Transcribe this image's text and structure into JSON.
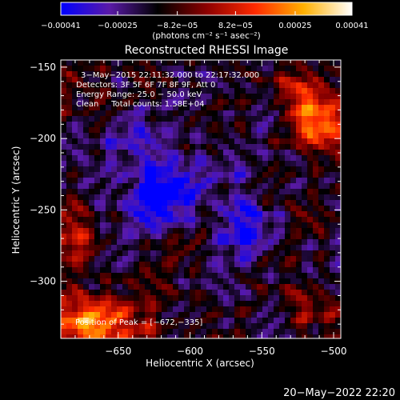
{
  "chart_data": {
    "type": "heatmap",
    "title": "Reconstructed RHESSI Image",
    "xlabel": "Heliocentric X (arcsec)",
    "ylabel": "Heliocentric Y (arcsec)",
    "xlim": [
      -690,
      -495
    ],
    "ylim": [
      -340,
      -145
    ],
    "x_ticks": [
      -650,
      -600,
      -550,
      -500
    ],
    "x_tick_labels": [
      "−650",
      "−600",
      "−550",
      "−500"
    ],
    "y_ticks": [
      -150,
      -200,
      -250,
      -300
    ],
    "y_tick_labels": [
      "−150",
      "−200",
      "−250",
      "−300"
    ],
    "colorbar": {
      "vmin": -0.00041,
      "vmax": 0.00041,
      "tick_values": [
        -0.00041,
        -0.00025,
        -8.2e-05,
        8.2e-05,
        0.00025,
        0.00041
      ],
      "tick_labels": [
        "−0.00041",
        "−0.00025",
        "−8.2e−05",
        "8.2e−05",
        "0.00025",
        "0.00041"
      ],
      "label": "(photons cm⁻² s⁻¹ asec⁻²)",
      "colors": [
        "#0000ff",
        "#5a1aa8",
        "#000000",
        "#8c0000",
        "#ff2a00",
        "#ffb000",
        "#ffffff"
      ]
    },
    "annotations": [
      "3−May−2015 22:11:32.000 to 22:17:32.000",
      "Detectors: 3F 5F 6F 7F 8F 9F, Att 0",
      "Energy Range: 25.0 − 50.0 keV",
      "Clean     Total counts: 1.58E+04"
    ],
    "peak_label": "Position of Peak = [−672,−335]",
    "peak_position": [
      -672,
      -335
    ],
    "bright_regions": [
      {
        "x": -675,
        "y": -330,
        "intensity": 0.0004
      },
      {
        "x": -640,
        "y": -332,
        "intensity": 0.0002
      },
      {
        "x": -512,
        "y": -190,
        "intensity": 0.00032
      },
      {
        "x": -520,
        "y": -165,
        "intensity": 0.00022
      },
      {
        "x": -515,
        "y": -318,
        "intensity": 0.00016
      },
      {
        "x": -682,
        "y": -272,
        "intensity": 0.00018
      },
      {
        "x": -682,
        "y": -160,
        "intensity": 0.00012
      }
    ],
    "dim_regions": [
      {
        "x": -620,
        "y": -238,
        "intensity": -0.00035
      },
      {
        "x": -560,
        "y": -265,
        "intensity": -0.0002
      },
      {
        "x": -640,
        "y": -200,
        "intensity": -0.00015
      },
      {
        "x": -570,
        "y": -215,
        "intensity": -0.00012
      }
    ]
  },
  "footer": {
    "timestamp": "20−May−2022 22:20"
  }
}
